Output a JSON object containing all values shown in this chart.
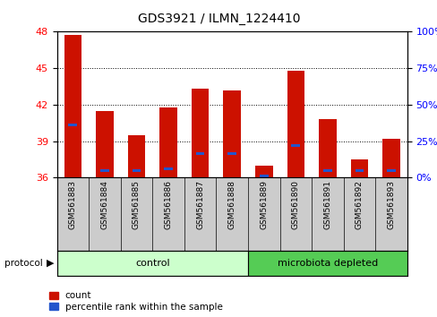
{
  "title": "GDS3921 / ILMN_1224410",
  "samples": [
    "GSM561883",
    "GSM561884",
    "GSM561885",
    "GSM561886",
    "GSM561887",
    "GSM561888",
    "GSM561889",
    "GSM561890",
    "GSM561891",
    "GSM561892",
    "GSM561893"
  ],
  "count_values": [
    47.7,
    41.5,
    39.5,
    41.8,
    43.3,
    43.2,
    37.0,
    44.8,
    40.8,
    37.5,
    39.2
  ],
  "percentile_y": [
    40.3,
    36.55,
    36.55,
    36.75,
    38.0,
    38.0,
    36.1,
    38.6,
    36.55,
    36.55,
    36.55
  ],
  "y_min": 36,
  "y_max": 48,
  "y_ticks": [
    36,
    39,
    42,
    45,
    48
  ],
  "right_y_ticks": [
    0,
    25,
    50,
    75,
    100
  ],
  "right_y_tick_labels": [
    "0%",
    "25%",
    "50%",
    "75%",
    "100%"
  ],
  "bar_color": "#cc1100",
  "blue_color": "#2255cc",
  "n_control": 6,
  "n_micro": 5,
  "control_label": "control",
  "microbiota_label": "microbiota depleted",
  "protocol_label": "protocol",
  "control_bg": "#ccffcc",
  "microbiota_bg": "#55cc55",
  "sample_bg": "#cccccc",
  "legend_count_label": "count",
  "legend_pct_label": "percentile rank within the sample"
}
